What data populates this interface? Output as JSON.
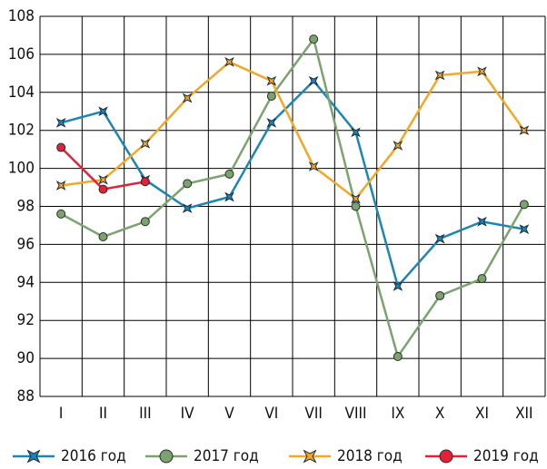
{
  "chart_data": {
    "type": "line",
    "categories": [
      "I",
      "II",
      "III",
      "IV",
      "V",
      "VI",
      "VII",
      "VIII",
      "IX",
      "X",
      "XI",
      "XII"
    ],
    "series": [
      {
        "name": "2016 год",
        "color": "#1b86b6",
        "marker": "star",
        "values": [
          102.4,
          103.0,
          99.4,
          97.9,
          98.5,
          102.4,
          104.6,
          101.9,
          93.8,
          96.3,
          97.2,
          96.8
        ]
      },
      {
        "name": "2017 год",
        "color": "#7aa36f",
        "marker": "circle",
        "values": [
          97.6,
          96.4,
          97.2,
          99.2,
          99.7,
          103.8,
          106.8,
          98.0,
          90.1,
          93.3,
          94.2,
          98.1
        ]
      },
      {
        "name": "2018 год",
        "color": "#f5a623",
        "marker": "star",
        "values": [
          99.1,
          99.4,
          101.3,
          103.7,
          105.6,
          104.6,
          100.1,
          98.4,
          101.2,
          104.9,
          105.1,
          102.0
        ]
      },
      {
        "name": "2019 год",
        "color": "#e5213a",
        "marker": "circle",
        "values": [
          101.1,
          98.9,
          99.3,
          null,
          null,
          null,
          null,
          null,
          null,
          null,
          null,
          null
        ]
      }
    ],
    "ylim": [
      88,
      108
    ],
    "yticks": [
      88,
      90,
      92,
      94,
      96,
      98,
      100,
      102,
      104,
      106,
      108
    ],
    "grid": true,
    "legend": "bottom"
  }
}
